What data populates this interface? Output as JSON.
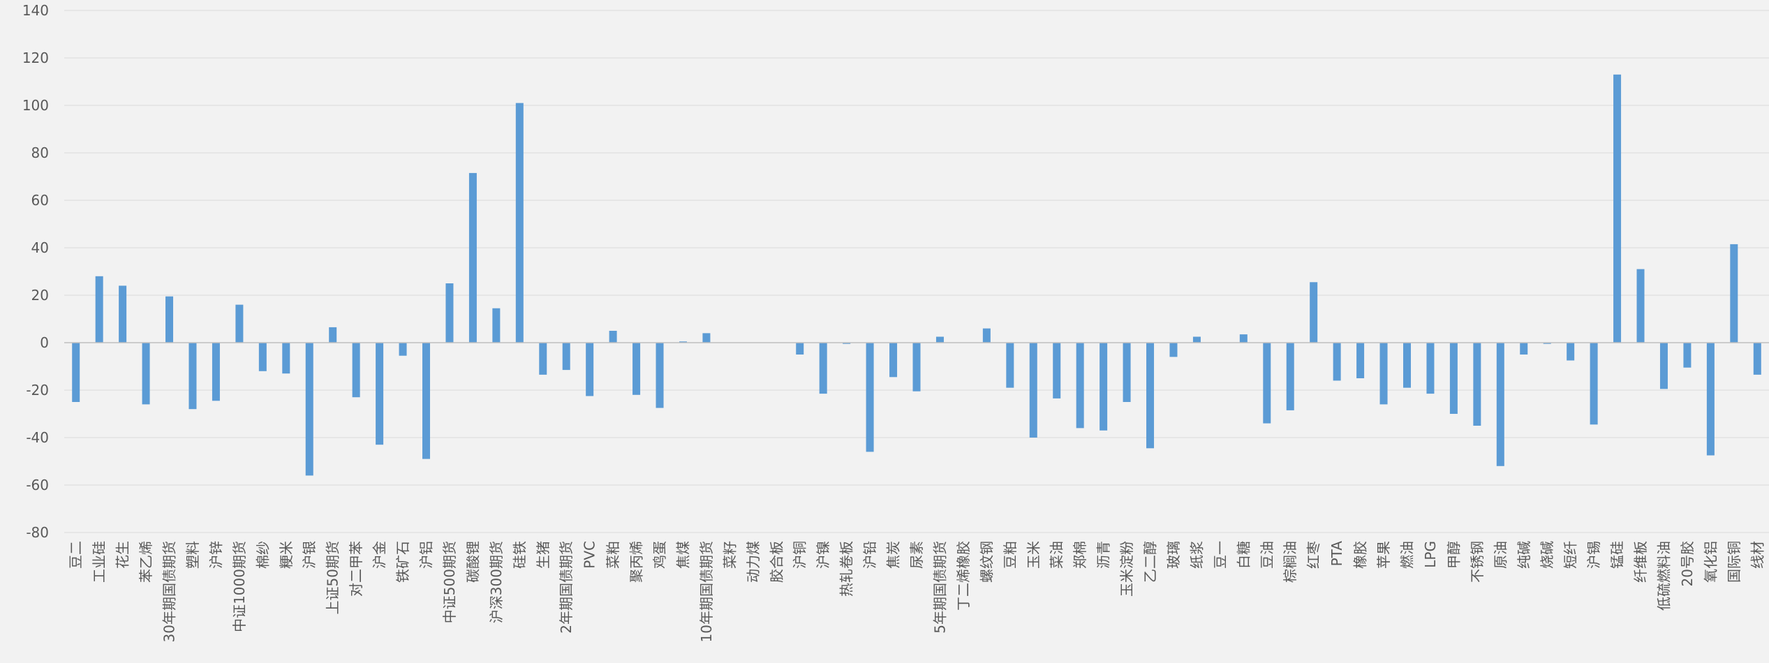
{
  "colors": {
    "bar": "#5b9bd5",
    "grid": "#d9d9d9",
    "axis": "#bfbfbf",
    "background": "#f2f2f2",
    "text": "#595959"
  },
  "chart_data": {
    "type": "bar",
    "title": "",
    "xlabel": "",
    "ylabel": "",
    "ylim": [
      -80,
      140
    ],
    "yticks": [
      -80,
      -60,
      -40,
      -20,
      0,
      20,
      40,
      60,
      80,
      100,
      120,
      140
    ],
    "grid": true,
    "legend": "none",
    "categories": [
      "豆二",
      "工业硅",
      "花生",
      "苯乙烯",
      "30年期国债期货",
      "塑料",
      "沪锌",
      "中证1000期货",
      "棉纱",
      "粳米",
      "沪银",
      "上证50期货",
      "对二甲苯",
      "沪金",
      "铁矿石",
      "沪铝",
      "中证500期货",
      "碳酸锂",
      "沪深300期货",
      "硅铁",
      "生猪",
      "2年期国债期货",
      "PVC",
      "菜粕",
      "聚丙烯",
      "鸡蛋",
      "焦煤",
      "10年期国债期货",
      "菜籽",
      "动力煤",
      "胶合板",
      "沪铜",
      "沪镍",
      "热轧卷板",
      "沪铅",
      "焦炭",
      "尿素",
      "5年期国债期货",
      "丁二烯橡胶",
      "螺纹钢",
      "豆粕",
      "玉米",
      "菜油",
      "郑棉",
      "沥青",
      "玉米淀粉",
      "乙二醇",
      "玻璃",
      "纸浆",
      "豆一",
      "白糖",
      "豆油",
      "棕榈油",
      "红枣",
      "PTA",
      "橡胶",
      "苹果",
      "燃油",
      "LPG",
      "甲醇",
      "不锈钢",
      "原油",
      "纯碱",
      "烧碱",
      "短纤",
      "沪锡",
      "锰硅",
      "纤维板",
      "低硫燃料油",
      "20号胶",
      "氧化铝",
      "国际铜",
      "线材"
    ],
    "series": [
      {
        "values": [
          -25,
          28,
          24,
          -26,
          19.5,
          -28,
          -24.5,
          16,
          -12,
          -13,
          -56,
          6.5,
          -23,
          -43,
          -5.5,
          -49,
          25,
          71.5,
          14.5,
          101,
          -13.5,
          -11.5,
          -22.5,
          5,
          -22,
          -27.5,
          0.5,
          4,
          0,
          0,
          0,
          -5,
          -21.5,
          -0.5,
          -46,
          -14.5,
          -20.5,
          2.5,
          0,
          6,
          -19,
          -40,
          -23.5,
          -36,
          -37,
          -25,
          -44.5,
          -6,
          2.5,
          0,
          3.5,
          -34,
          -28.5,
          25.5,
          -16,
          -15,
          -26,
          -19,
          -21.5,
          -30,
          -35,
          -52,
          -5,
          -0.5,
          -7.5,
          -34.5,
          113,
          31,
          -19.5,
          -10.5,
          -47.5,
          41.5,
          -13.5
        ]
      }
    ]
  }
}
